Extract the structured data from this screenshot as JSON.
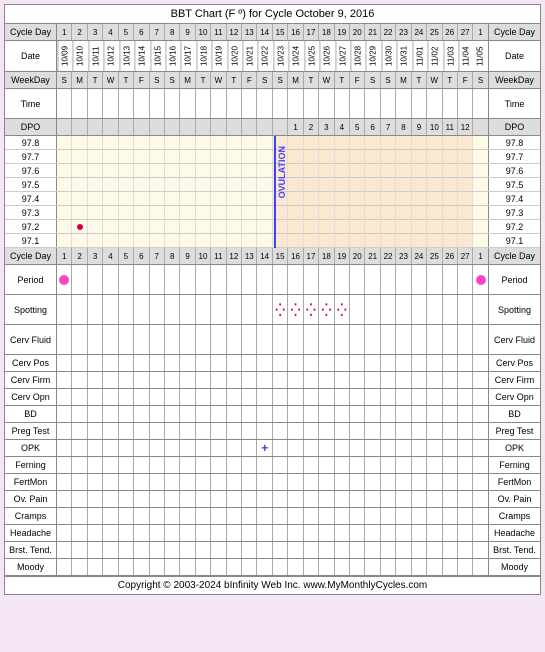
{
  "title": "BBT Chart (F º) for Cycle October 9, 2016",
  "footer": "Copyright © 2003-2024 bInfinity Web Inc.    www.MyMonthlyCycles.com",
  "colors": {
    "page_bg": "#f5e6f5",
    "pre_ov_bg": "#fffae8",
    "post_ov_bg": "#fce8d0",
    "ov_line": "#4040ff",
    "temp_dot": "#cc0044",
    "period_dot": "#ff44cc",
    "spotting": "#cc0044",
    "opk_plus": "#6633cc",
    "grid": "#888888",
    "header_bg": "#dddddd"
  },
  "labels": {
    "cycle_day": "Cycle Day",
    "date": "Date",
    "weekday": "WeekDay",
    "time": "Time",
    "dpo": "DPO",
    "period": "Period",
    "spotting": "Spotting",
    "cerv_fluid": "Cerv Fluid",
    "cerv_pos": "Cerv Pos",
    "cerv_firm": "Cerv Firm",
    "cerv_opn": "Cerv Opn",
    "bd": "BD",
    "preg_test": "Preg Test",
    "opk": "OPK",
    "ferning": "Ferning",
    "fertmon": "FertMon",
    "ov_pain": "Ov. Pain",
    "cramps": "Cramps",
    "headache": "Headache",
    "brst_tend": "Brst. Tend.",
    "moody": "Moody"
  },
  "ovulation_label": "OVULATION",
  "cycle_days": [
    1,
    2,
    3,
    4,
    5,
    6,
    7,
    8,
    9,
    10,
    11,
    12,
    13,
    14,
    15,
    16,
    17,
    18,
    19,
    20,
    21,
    22,
    23,
    24,
    25,
    26,
    27,
    1
  ],
  "dates": [
    "10/09",
    "10/10",
    "10/11",
    "10/12",
    "10/13",
    "10/14",
    "10/15",
    "10/16",
    "10/17",
    "10/18",
    "10/19",
    "10/20",
    "10/21",
    "10/22",
    "10/23",
    "10/24",
    "10/25",
    "10/26",
    "10/27",
    "10/28",
    "10/29",
    "10/30",
    "10/31",
    "11/01",
    "11/02",
    "11/03",
    "11/04",
    "11/05"
  ],
  "weekdays": [
    "S",
    "M",
    "T",
    "W",
    "T",
    "F",
    "S",
    "S",
    "M",
    "T",
    "W",
    "T",
    "F",
    "S",
    "S",
    "M",
    "T",
    "W",
    "T",
    "F",
    "S",
    "S",
    "M",
    "T",
    "W",
    "T",
    "F",
    "S"
  ],
  "dpo": [
    "",
    "",
    "",
    "",
    "",
    "",
    "",
    "",
    "",
    "",
    "",
    "",
    "",
    "",
    "",
    "1",
    "2",
    "3",
    "4",
    "5",
    "6",
    "7",
    "8",
    "9",
    "10",
    "11",
    "12",
    ""
  ],
  "temp_scale": [
    "97.8",
    "97.7",
    "97.6",
    "97.5",
    "97.4",
    "97.3",
    "97.2",
    "97.1"
  ],
  "ovulation_day_index": 14,
  "temp_points": [
    {
      "day_index": 1,
      "temp_index": 6
    }
  ],
  "period_days": [
    0,
    27
  ],
  "spotting_days": [
    14,
    15,
    16,
    17,
    18
  ],
  "opk": [
    {
      "day_index": 13,
      "result": "+"
    }
  ]
}
